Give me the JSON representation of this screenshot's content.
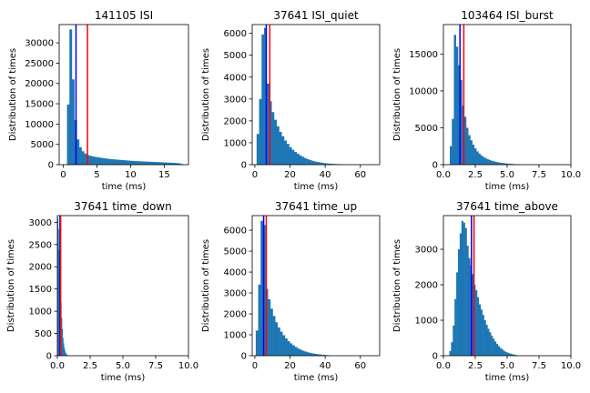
{
  "colors": {
    "bar": "#1f77b4",
    "median_line": "#0000ff",
    "mean_line": "#ff0000",
    "axes": "#000000"
  },
  "chart_data": [
    {
      "type": "bar",
      "title": "141105 ISI",
      "xlabel": "time (ms)",
      "ylabel": "Distribution of times",
      "xlim": [
        -0.6,
        18.6
      ],
      "ylim": [
        0,
        34500
      ],
      "xticks": [
        0,
        5,
        10,
        15
      ],
      "xtick_labels": [
        "0",
        "5",
        "10",
        "15"
      ],
      "yticks": [
        0,
        5000,
        10000,
        15000,
        20000,
        25000,
        30000
      ],
      "ytick_labels": [
        "0",
        "5000",
        "10000",
        "15000",
        "20000",
        "25000",
        "30000"
      ],
      "bin_width": 0.36,
      "x": [
        0.74,
        1.1,
        1.46,
        1.82,
        2.18,
        2.54,
        2.9,
        3.26,
        3.62,
        3.98,
        4.34,
        4.7,
        5.06,
        5.42,
        5.78,
        6.14,
        6.5,
        6.86,
        7.22,
        7.58,
        7.94,
        8.3,
        8.66,
        9.02,
        9.38,
        9.74,
        10.1,
        10.46,
        10.82,
        11.18,
        11.54,
        11.9,
        12.26,
        12.62,
        12.98,
        13.34,
        13.7,
        14.06,
        14.42,
        14.78,
        15.14,
        15.5,
        15.86,
        16.22,
        16.58,
        16.94,
        17.3,
        17.66
      ],
      "values": [
        14800,
        33300,
        21000,
        11000,
        6200,
        4300,
        3300,
        2750,
        2400,
        2200,
        2050,
        1950,
        1850,
        1750,
        1650,
        1550,
        1500,
        1400,
        1350,
        1300,
        1250,
        1200,
        1150,
        1100,
        1050,
        1000,
        950,
        920,
        880,
        850,
        820,
        790,
        760,
        730,
        700,
        680,
        650,
        620,
        600,
        570,
        540,
        510,
        480,
        450,
        420,
        380,
        300,
        150
      ],
      "median": 1.9,
      "mean": 3.6
    },
    {
      "type": "bar",
      "title": "37641 ISI_quiet",
      "xlabel": "time (ms)",
      "ylabel": "Distribution of times",
      "xlim": [
        -1.5,
        71
      ],
      "ylim": [
        0,
        6400
      ],
      "xticks": [
        0,
        20,
        40,
        60
      ],
      "xtick_labels": [
        "0",
        "20",
        "40",
        "60"
      ],
      "yticks": [
        0,
        1000,
        2000,
        3000,
        4000,
        5000,
        6000
      ],
      "ytick_labels": [
        "0",
        "1000",
        "2000",
        "3000",
        "4000",
        "5000",
        "6000"
      ],
      "bin_width": 1.42,
      "x": [
        1.7,
        3.12,
        4.54,
        5.96,
        7.38,
        8.8,
        10.22,
        11.64,
        13.06,
        14.48,
        15.9,
        17.32,
        18.74,
        20.16,
        21.58,
        23.0,
        24.42,
        25.84,
        27.26,
        28.68,
        30.1,
        31.52,
        32.94,
        34.36,
        35.78,
        37.2,
        38.62,
        40.04,
        41.46,
        42.88,
        44.3,
        45.72,
        47.14,
        48.56,
        49.98
      ],
      "values": [
        1400,
        3000,
        5950,
        6250,
        3700,
        2900,
        2400,
        2050,
        1750,
        1500,
        1300,
        1100,
        950,
        800,
        680,
        580,
        500,
        420,
        360,
        300,
        250,
        210,
        175,
        145,
        120,
        100,
        80,
        65,
        55,
        45,
        38,
        30,
        25,
        20,
        15
      ],
      "median": 6.5,
      "mean": 8.5
    },
    {
      "type": "bar",
      "title": "103464 ISI_burst",
      "xlabel": "time (ms)",
      "ylabel": "Distribution of times",
      "xlim": [
        0,
        10
      ],
      "ylim": [
        0,
        19000
      ],
      "xticks": [
        0,
        2.5,
        5,
        7.5,
        10
      ],
      "xtick_labels": [
        "0.0",
        "2.5",
        "5.0",
        "7.5",
        "10.0"
      ],
      "yticks": [
        0,
        5000,
        10000,
        15000
      ],
      "ytick_labels": [
        "0",
        "5000",
        "10000",
        "15000"
      ],
      "bin_width": 0.16,
      "x": [
        0.58,
        0.74,
        0.9,
        1.06,
        1.22,
        1.38,
        1.54,
        1.7,
        1.86,
        2.02,
        2.18,
        2.34,
        2.5,
        2.66,
        2.82,
        2.98,
        3.14,
        3.3,
        3.46,
        3.62,
        3.78,
        3.94,
        4.1,
        4.26,
        4.42,
        4.58,
        4.74,
        4.9,
        5.06,
        5.22,
        5.38,
        5.54,
        5.7,
        5.86
      ],
      "values": [
        2500,
        6200,
        17600,
        16000,
        13500,
        11500,
        8000,
        6500,
        5000,
        4000,
        3300,
        2700,
        2200,
        1800,
        1500,
        1250,
        1050,
        900,
        760,
        640,
        540,
        460,
        390,
        330,
        280,
        240,
        200,
        170,
        140,
        120,
        100,
        80,
        60,
        40
      ],
      "median": 1.3,
      "mean": 1.6
    },
    {
      "type": "bar",
      "title": "37641 time_down",
      "xlabel": "time (ms)",
      "ylabel": "Distribution of times",
      "xlim": [
        0,
        10
      ],
      "ylim": [
        0,
        3150
      ],
      "xticks": [
        0,
        2.5,
        5,
        7.5,
        10
      ],
      "xtick_labels": [
        "0.0",
        "2.5",
        "5.0",
        "7.5",
        "10.0"
      ],
      "yticks": [
        0,
        500,
        1000,
        1500,
        2000,
        2500,
        3000
      ],
      "ytick_labels": [
        "0",
        "500",
        "1000",
        "1500",
        "2000",
        "2500",
        "3000"
      ],
      "bin_width": 0.05,
      "x": [
        0.025,
        0.075,
        0.125,
        0.175,
        0.225,
        0.275,
        0.325,
        0.375,
        0.425,
        0.475,
        0.525,
        0.575,
        0.625,
        0.675,
        0.725,
        0.775
      ],
      "values": [
        3100,
        2850,
        2380,
        2200,
        1600,
        1200,
        850,
        600,
        400,
        280,
        180,
        110,
        70,
        40,
        20,
        10
      ],
      "median": 0.2,
      "mean": 0.25
    },
    {
      "type": "bar",
      "title": "37641 time_up",
      "xlabel": "time (ms)",
      "ylabel": "Distribution of times",
      "xlim": [
        -1.5,
        71
      ],
      "ylim": [
        0,
        6700
      ],
      "xticks": [
        0,
        20,
        40,
        60
      ],
      "xtick_labels": [
        "0",
        "20",
        "40",
        "60"
      ],
      "yticks": [
        0,
        1000,
        2000,
        3000,
        4000,
        5000,
        6000
      ],
      "ytick_labels": [
        "0",
        "1000",
        "2000",
        "3000",
        "4000",
        "5000",
        "6000"
      ],
      "bin_width": 1.38,
      "x": [
        1.2,
        2.58,
        3.96,
        5.34,
        6.72,
        8.1,
        9.48,
        10.86,
        12.24,
        13.62,
        15.0,
        16.38,
        17.76,
        19.14,
        20.52,
        21.9,
        23.28,
        24.66,
        26.04,
        27.42,
        28.8,
        30.18,
        31.56,
        32.94,
        34.32,
        35.7,
        37.08,
        38.46,
        39.84,
        41.22
      ],
      "values": [
        1200,
        3400,
        6450,
        6250,
        3200,
        2700,
        2250,
        1900,
        1600,
        1350,
        1150,
        980,
        830,
        700,
        590,
        500,
        420,
        350,
        290,
        240,
        200,
        165,
        135,
        110,
        90,
        72,
        58,
        46,
        36,
        28
      ],
      "median": 5.0,
      "mean": 6.5
    },
    {
      "type": "bar",
      "title": "37641 time_above",
      "xlabel": "time (ms)",
      "ylabel": "Distribution of times",
      "xlim": [
        0,
        10
      ],
      "ylim": [
        0,
        3950
      ],
      "xticks": [
        0,
        2.5,
        5,
        7.5,
        10
      ],
      "xtick_labels": [
        "0.0",
        "2.5",
        "5.0",
        "7.5",
        "10.0"
      ],
      "yticks": [
        0,
        1000,
        2000,
        3000
      ],
      "ytick_labels": [
        "0",
        "1000",
        "2000",
        "3000"
      ],
      "bin_width": 0.136,
      "x": [
        0.53,
        0.666,
        0.802,
        0.938,
        1.074,
        1.21,
        1.346,
        1.482,
        1.618,
        1.754,
        1.89,
        2.026,
        2.162,
        2.298,
        2.434,
        2.57,
        2.706,
        2.842,
        2.978,
        3.114,
        3.25,
        3.386,
        3.522,
        3.658,
        3.794,
        3.93,
        4.066,
        4.202,
        4.338,
        4.474,
        4.61,
        4.746,
        4.882,
        5.018,
        5.154,
        5.29,
        5.426,
        5.562,
        5.698
      ],
      "values": [
        130,
        380,
        850,
        1600,
        2350,
        3000,
        3450,
        3800,
        3750,
        3600,
        3100,
        2750,
        2550,
        2300,
        2000,
        1850,
        1650,
        1450,
        1300,
        1150,
        1000,
        870,
        760,
        660,
        560,
        480,
        400,
        330,
        270,
        220,
        180,
        140,
        110,
        90,
        70,
        55,
        40,
        30,
        20
      ],
      "median": 2.2,
      "mean": 2.4
    }
  ]
}
